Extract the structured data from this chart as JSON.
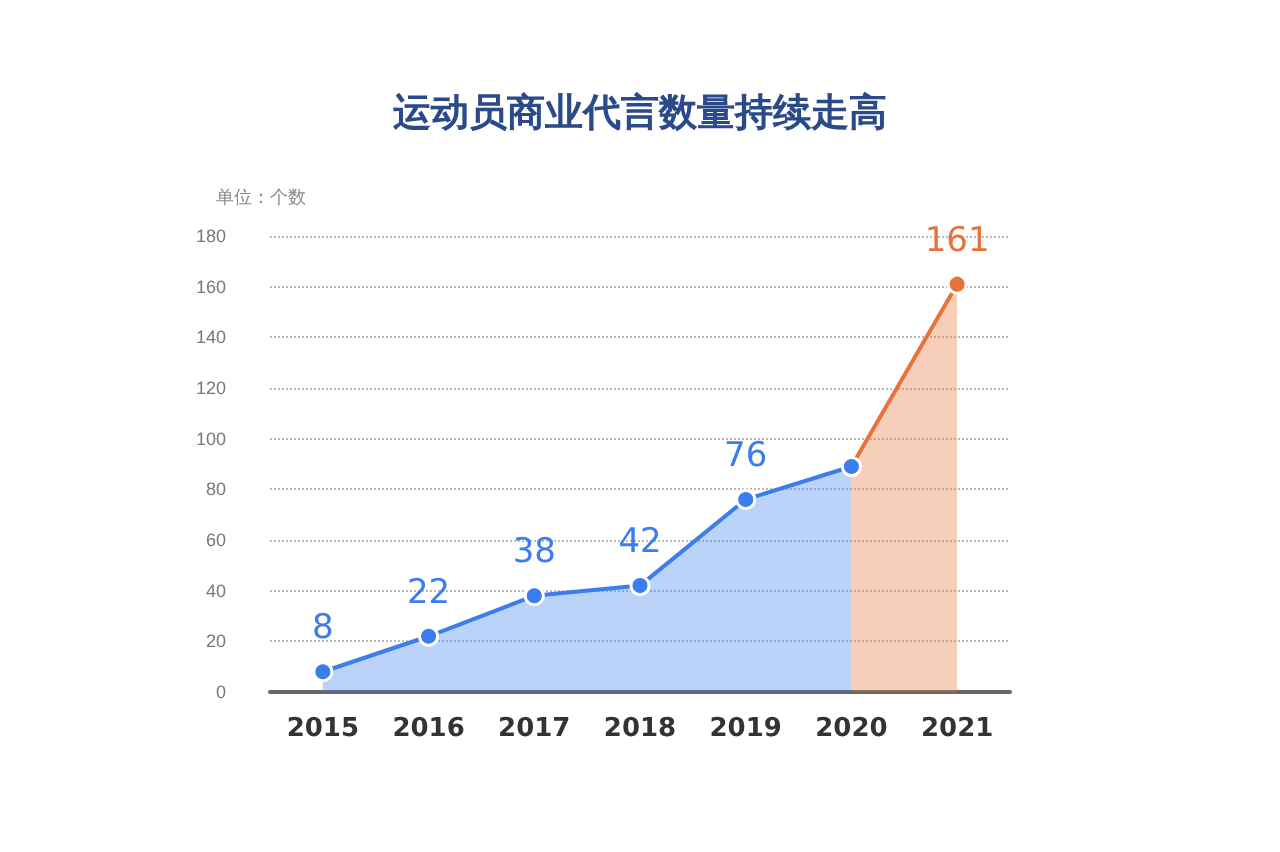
{
  "chart_data": {
    "type": "area",
    "title": "运动员商业代言数量持续走高",
    "annotations": [
      "单位：个数"
    ],
    "categories": [
      "2015",
      "2016",
      "2017",
      "2018",
      "2019",
      "2020",
      "2021"
    ],
    "values": [
      8,
      22,
      38,
      42,
      76,
      89,
      161
    ],
    "value_labels": [
      "8",
      "22",
      "38",
      "42",
      "76",
      null,
      "161"
    ],
    "colors": [
      "#3b7ded",
      "#3b7ded",
      "#3b7ded",
      "#3b7ded",
      "#3b7ded",
      "#3b7ded",
      "#e8733a"
    ],
    "ylim": [
      0,
      180
    ],
    "yticks": [
      0,
      20,
      40,
      60,
      80,
      100,
      120,
      140,
      160,
      180
    ],
    "grid": "y",
    "marker": "circle",
    "line_style": "solid"
  }
}
